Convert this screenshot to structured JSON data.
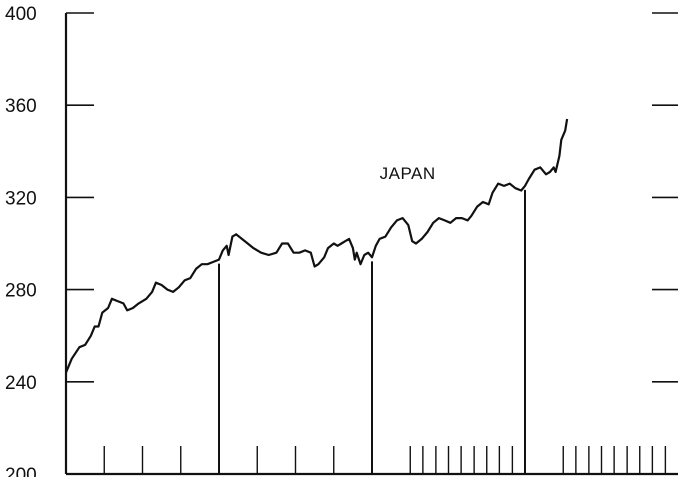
{
  "chart_data": {
    "type": "line",
    "title": "",
    "xlabel": "",
    "ylabel": "",
    "ylim": [
      200,
      400
    ],
    "xlim": [
      0,
      16
    ],
    "yticks": [
      200,
      240,
      280,
      320,
      360,
      400
    ],
    "grid": false,
    "annotations": [
      {
        "text": "JAPAN",
        "x": 8.2,
        "y": 328
      }
    ],
    "period_dividers": [
      4,
      8,
      12
    ],
    "minor_ticks": [
      1,
      2,
      3,
      5,
      6,
      7,
      9,
      9.33,
      9.67,
      10,
      10.33,
      10.67,
      11,
      11.33,
      11.67,
      13,
      13.33,
      13.67,
      14,
      14.33,
      14.67,
      15,
      15.33,
      15.67
    ],
    "series": [
      {
        "values": [
          [
            0,
            244
          ],
          [
            0.15,
            250
          ],
          [
            0.35,
            255
          ],
          [
            0.5,
            256
          ],
          [
            0.65,
            260
          ],
          [
            0.75,
            264
          ],
          [
            0.85,
            264
          ],
          [
            0.95,
            270
          ],
          [
            1.1,
            272
          ],
          [
            1.2,
            276
          ],
          [
            1.35,
            275
          ],
          [
            1.5,
            274
          ],
          [
            1.6,
            271
          ],
          [
            1.75,
            272
          ],
          [
            1.9,
            274
          ],
          [
            2.1,
            276
          ],
          [
            2.25,
            279
          ],
          [
            2.35,
            283
          ],
          [
            2.5,
            282
          ],
          [
            2.65,
            280
          ],
          [
            2.8,
            279
          ],
          [
            2.95,
            281
          ],
          [
            3.1,
            284
          ],
          [
            3.25,
            285
          ],
          [
            3.4,
            289
          ],
          [
            3.55,
            291
          ],
          [
            3.7,
            291
          ],
          [
            3.85,
            292
          ],
          [
            4.0,
            293
          ],
          [
            4.1,
            297
          ],
          [
            4.2,
            299
          ],
          [
            4.25,
            295
          ],
          [
            4.35,
            303
          ],
          [
            4.45,
            304
          ],
          [
            4.6,
            302
          ],
          [
            4.75,
            300
          ],
          [
            4.9,
            298
          ],
          [
            5.1,
            296
          ],
          [
            5.3,
            295
          ],
          [
            5.5,
            296
          ],
          [
            5.65,
            300
          ],
          [
            5.8,
            300
          ],
          [
            5.95,
            296
          ],
          [
            6.1,
            296
          ],
          [
            6.25,
            297
          ],
          [
            6.4,
            296
          ],
          [
            6.5,
            290
          ],
          [
            6.6,
            291
          ],
          [
            6.75,
            294
          ],
          [
            6.85,
            298
          ],
          [
            7.0,
            300
          ],
          [
            7.1,
            299
          ],
          [
            7.2,
            300
          ],
          [
            7.3,
            301
          ],
          [
            7.4,
            302
          ],
          [
            7.5,
            298
          ],
          [
            7.55,
            293
          ],
          [
            7.6,
            296
          ],
          [
            7.7,
            291
          ],
          [
            7.8,
            295
          ],
          [
            7.9,
            296
          ],
          [
            8.0,
            294
          ],
          [
            8.1,
            299
          ],
          [
            8.2,
            302
          ],
          [
            8.35,
            303
          ],
          [
            8.5,
            307
          ],
          [
            8.65,
            310
          ],
          [
            8.8,
            311
          ],
          [
            8.95,
            308
          ],
          [
            9.05,
            301
          ],
          [
            9.15,
            300
          ],
          [
            9.3,
            302
          ],
          [
            9.45,
            305
          ],
          [
            9.6,
            309
          ],
          [
            9.75,
            311
          ],
          [
            9.9,
            310
          ],
          [
            10.05,
            309
          ],
          [
            10.2,
            311
          ],
          [
            10.35,
            311
          ],
          [
            10.5,
            310
          ],
          [
            10.6,
            312
          ],
          [
            10.75,
            316
          ],
          [
            10.9,
            318
          ],
          [
            11.05,
            317
          ],
          [
            11.15,
            322
          ],
          [
            11.3,
            326
          ],
          [
            11.45,
            325
          ],
          [
            11.6,
            326
          ],
          [
            11.75,
            324
          ],
          [
            11.9,
            323
          ],
          [
            12.0,
            325
          ],
          [
            12.1,
            328
          ],
          [
            12.25,
            332
          ],
          [
            12.4,
            333
          ],
          [
            12.55,
            330
          ],
          [
            12.65,
            331
          ],
          [
            12.75,
            333
          ],
          [
            12.8,
            331
          ],
          [
            12.9,
            338
          ],
          [
            12.95,
            345
          ],
          [
            13.05,
            349
          ],
          [
            13.1,
            354
          ]
        ]
      }
    ]
  }
}
